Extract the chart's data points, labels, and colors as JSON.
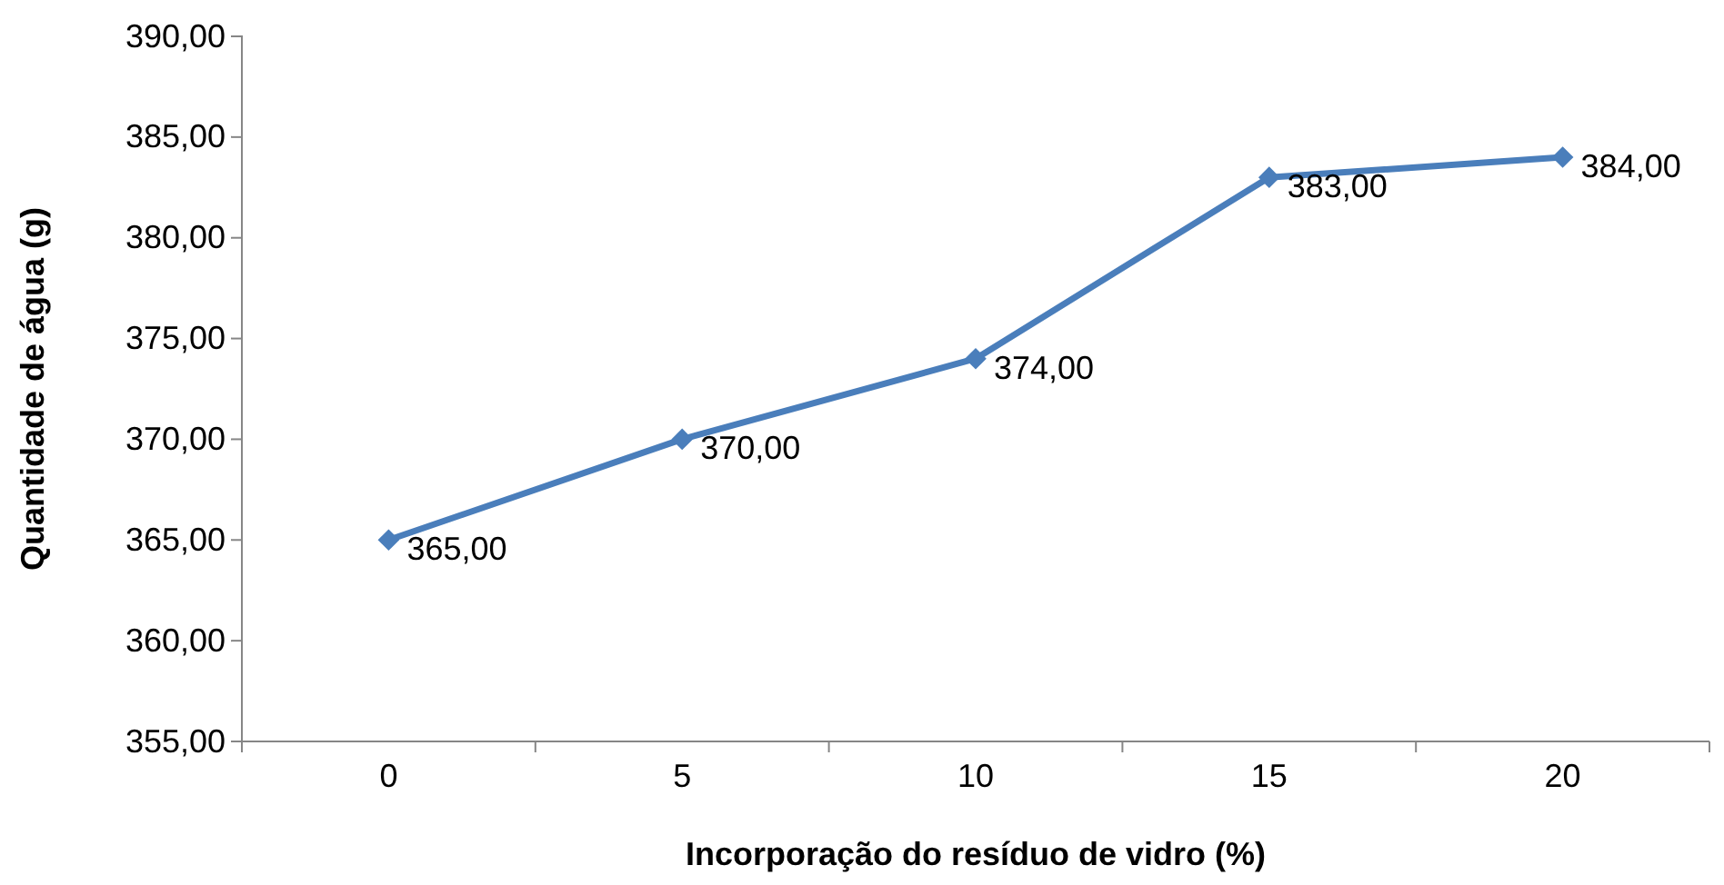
{
  "chart_data": {
    "type": "line",
    "xlabel": "Incorporação do resíduo de vidro (%)",
    "ylabel": "Quantidade de água (g)",
    "categories": [
      "0",
      "5",
      "10",
      "15",
      "20"
    ],
    "series": [
      {
        "color": "#4a7ebb",
        "values": [
          365,
          370,
          374,
          383,
          384
        ],
        "value_labels": [
          "365,00",
          "370,00",
          "374,00",
          "383,00",
          "384,00"
        ]
      }
    ],
    "ylim": [
      355,
      390
    ],
    "yticks": [
      {
        "value": 355,
        "label": "355,00"
      },
      {
        "value": 360,
        "label": "360,00"
      },
      {
        "value": 365,
        "label": "365,00"
      },
      {
        "value": 370,
        "label": "370,00"
      },
      {
        "value": 375,
        "label": "375,00"
      },
      {
        "value": 380,
        "label": "380,00"
      },
      {
        "value": 385,
        "label": "385,00"
      },
      {
        "value": 390,
        "label": "390,00"
      }
    ],
    "grid": false,
    "marker": "diamond",
    "line_style": "solid"
  }
}
